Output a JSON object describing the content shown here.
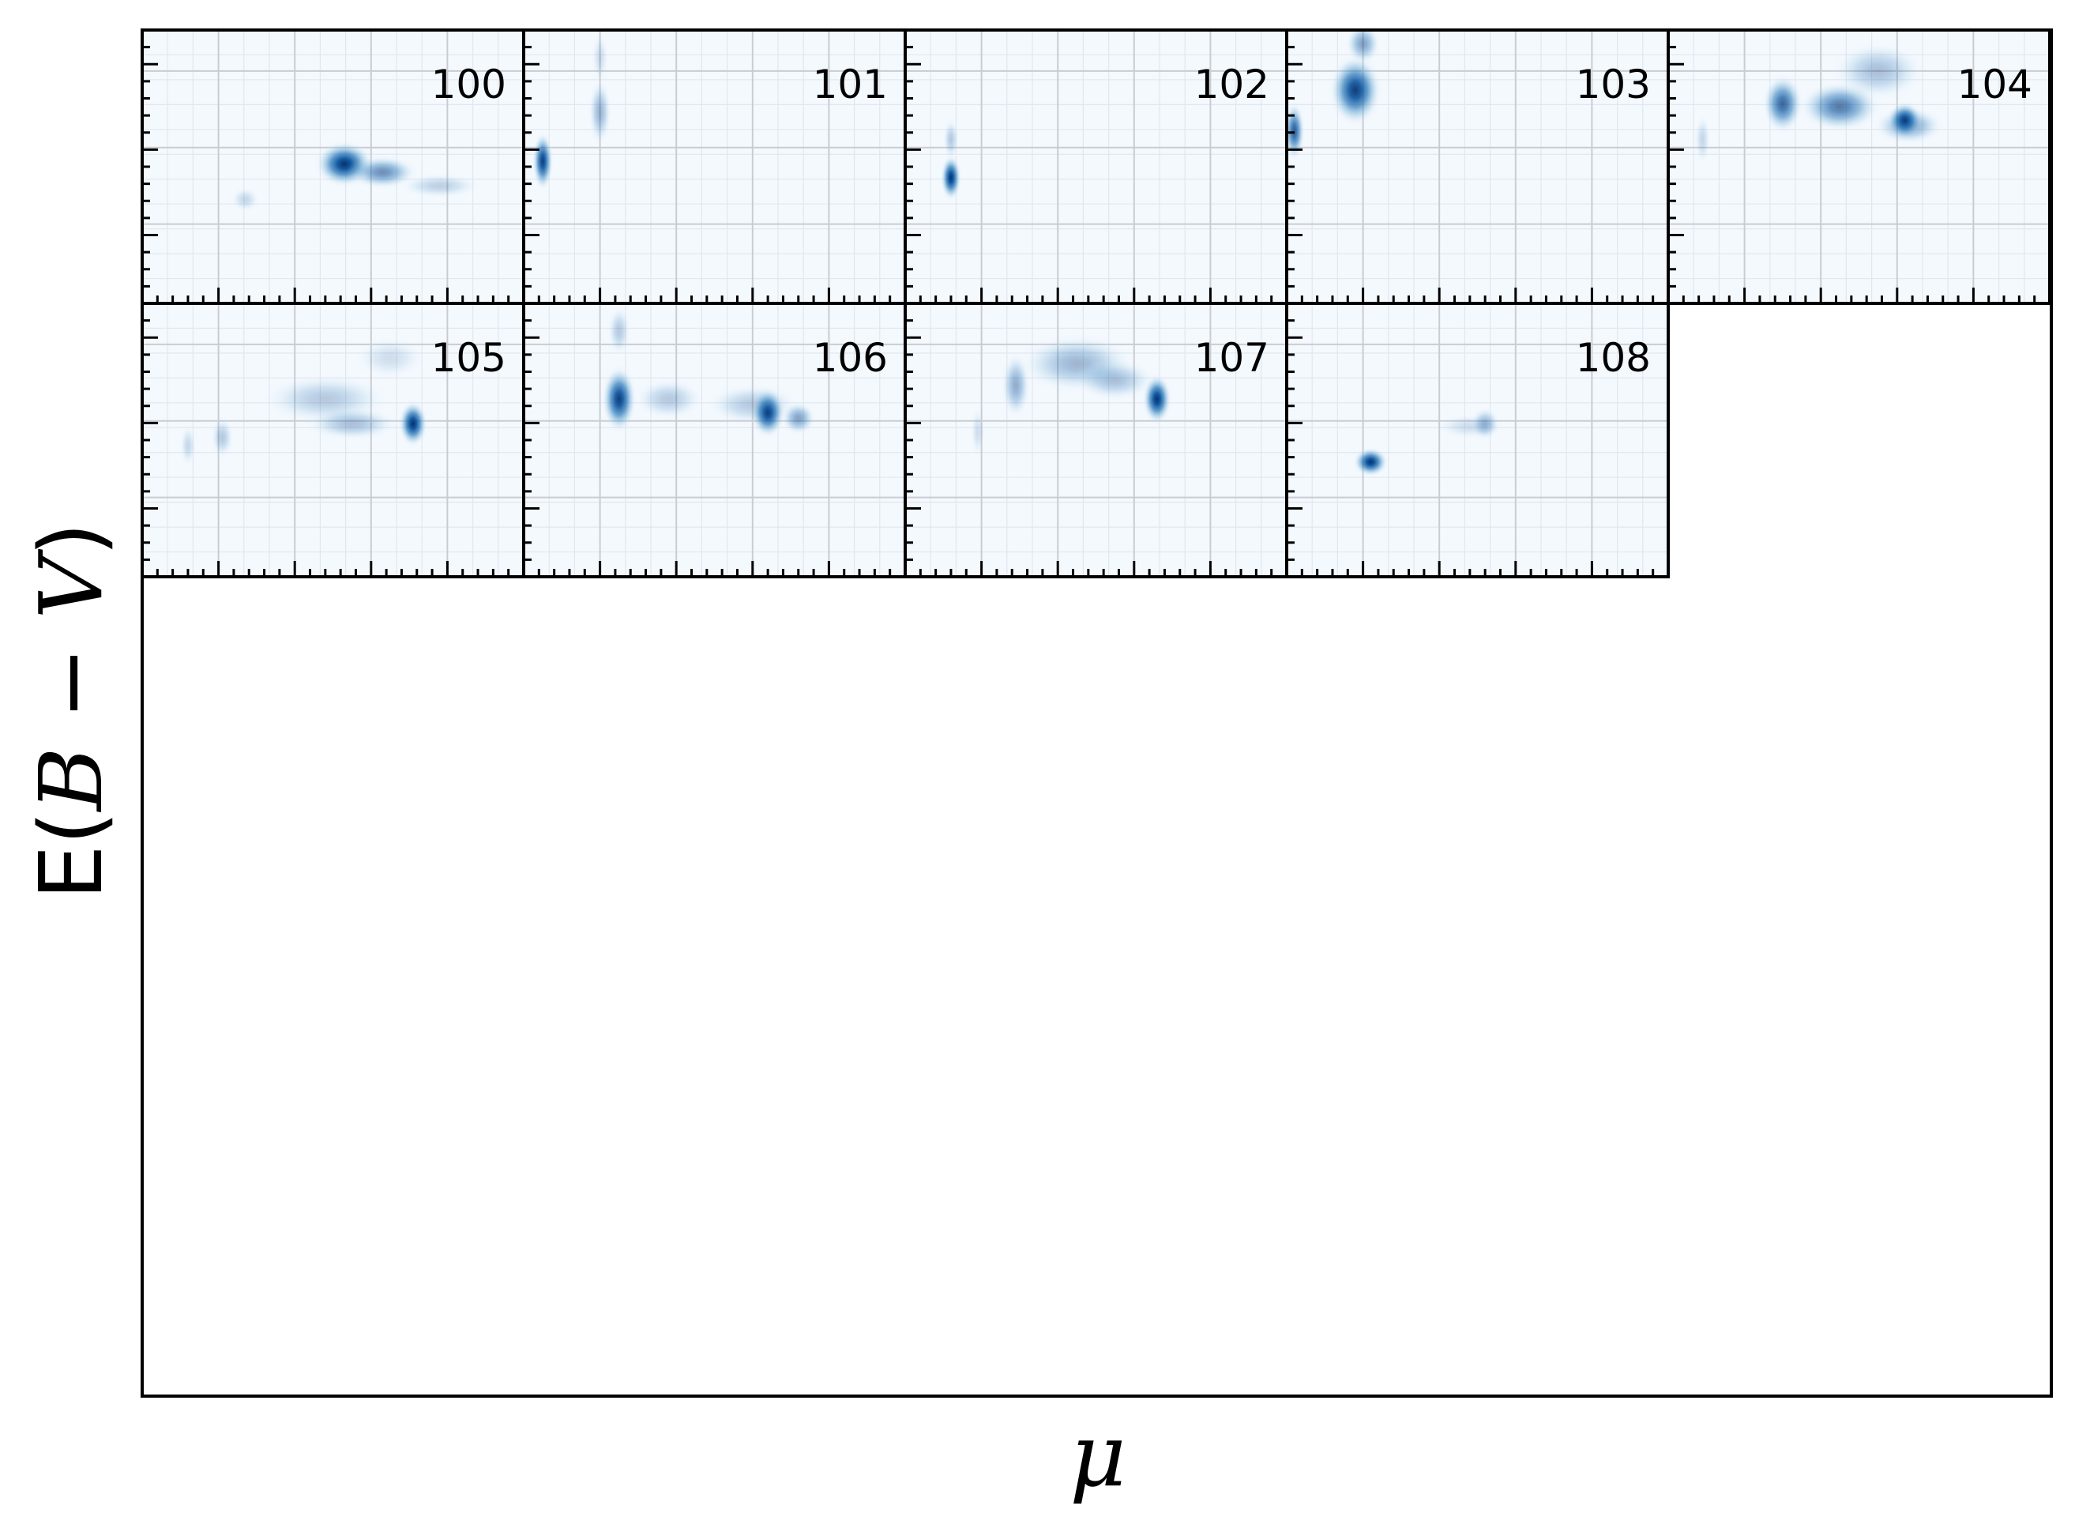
{
  "chart_data": {
    "type": "heatmap",
    "xlabel": "μ",
    "ylabel": "E(B − V)",
    "colormap": "Blues",
    "grid": true,
    "tick_labels": "none",
    "panels": [
      {
        "label": "100",
        "blobs": [
          [
            0.27,
            0.62,
            0.025,
            0.03,
            0.18
          ],
          [
            0.53,
            0.49,
            0.05,
            0.055,
            1.0
          ],
          [
            0.63,
            0.52,
            0.06,
            0.04,
            0.55
          ],
          [
            0.78,
            0.57,
            0.07,
            0.03,
            0.22
          ]
        ]
      },
      {
        "label": "101",
        "blobs": [
          [
            0.05,
            0.48,
            0.018,
            0.07,
            0.95
          ],
          [
            0.2,
            0.3,
            0.02,
            0.08,
            0.35
          ],
          [
            0.2,
            0.1,
            0.015,
            0.06,
            0.15
          ]
        ]
      },
      {
        "label": "102",
        "blobs": [
          [
            0.12,
            0.54,
            0.018,
            0.055,
            1.0
          ],
          [
            0.12,
            0.4,
            0.014,
            0.05,
            0.25
          ]
        ]
      },
      {
        "label": "103",
        "blobs": [
          [
            0.02,
            0.37,
            0.018,
            0.07,
            0.8
          ],
          [
            0.18,
            0.22,
            0.045,
            0.085,
            0.95
          ],
          [
            0.2,
            0.05,
            0.03,
            0.05,
            0.45
          ]
        ]
      },
      {
        "label": "104",
        "blobs": [
          [
            0.09,
            0.4,
            0.014,
            0.06,
            0.18
          ],
          [
            0.3,
            0.27,
            0.035,
            0.07,
            0.75
          ],
          [
            0.45,
            0.28,
            0.07,
            0.06,
            0.65
          ],
          [
            0.55,
            0.15,
            0.08,
            0.07,
            0.3
          ],
          [
            0.63,
            0.35,
            0.06,
            0.045,
            0.45
          ],
          [
            0.62,
            0.33,
            0.03,
            0.045,
            0.95
          ]
        ]
      },
      {
        "label": "105",
        "blobs": [
          [
            0.12,
            0.52,
            0.014,
            0.05,
            0.18
          ],
          [
            0.21,
            0.49,
            0.02,
            0.05,
            0.25
          ],
          [
            0.48,
            0.35,
            0.11,
            0.06,
            0.25
          ],
          [
            0.55,
            0.44,
            0.08,
            0.04,
            0.3
          ],
          [
            0.71,
            0.44,
            0.025,
            0.055,
            1.0
          ],
          [
            0.65,
            0.2,
            0.06,
            0.05,
            0.15
          ]
        ]
      },
      {
        "label": "106",
        "blobs": [
          [
            0.25,
            0.35,
            0.03,
            0.08,
            0.95
          ],
          [
            0.25,
            0.1,
            0.02,
            0.06,
            0.25
          ],
          [
            0.38,
            0.35,
            0.06,
            0.05,
            0.25
          ],
          [
            0.6,
            0.37,
            0.08,
            0.05,
            0.25
          ],
          [
            0.64,
            0.4,
            0.03,
            0.06,
            0.95
          ],
          [
            0.72,
            0.42,
            0.03,
            0.04,
            0.45
          ]
        ]
      },
      {
        "label": "107",
        "blobs": [
          [
            0.19,
            0.47,
            0.012,
            0.06,
            0.15
          ],
          [
            0.29,
            0.3,
            0.025,
            0.08,
            0.4
          ],
          [
            0.45,
            0.22,
            0.1,
            0.07,
            0.35
          ],
          [
            0.55,
            0.28,
            0.07,
            0.05,
            0.3
          ],
          [
            0.66,
            0.35,
            0.025,
            0.06,
            1.0
          ]
        ]
      },
      {
        "label": "108",
        "blobs": [
          [
            0.22,
            0.58,
            0.03,
            0.035,
            1.0
          ],
          [
            0.48,
            0.45,
            0.06,
            0.03,
            0.15
          ],
          [
            0.52,
            0.44,
            0.025,
            0.04,
            0.35
          ]
        ]
      }
    ]
  }
}
